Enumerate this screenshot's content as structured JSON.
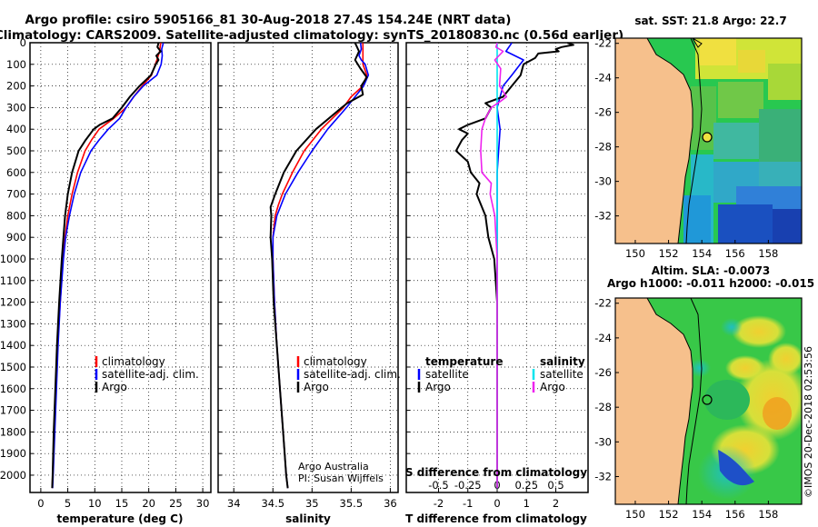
{
  "title_line1": "Argo profile: csiro 5905166_81 30-Aug-2018 27.4S 154.24E (NRT data)",
  "title_line2": "Climatology: CARS2009. Satellite-adjusted climatology: synTS_20180830.nc (0.56d earlier)",
  "credit_line1": "Argo Australia",
  "credit_line2": "PI: Susan Wijffels",
  "timestamp": "©IMOS 20-Dec-2018 02:53:56",
  "colors": {
    "argo": "#000000",
    "clim": "#ff0000",
    "satclim": "#0000ff",
    "s_sat": "#00e5ee",
    "s_argo": "#ee22ee"
  },
  "chart_data": [
    {
      "type": "line",
      "panel": "temperature",
      "xlabel": "temperature (deg C)",
      "xlim": [
        -2,
        31.5
      ],
      "xticks": [
        "0",
        "5",
        "10",
        "15",
        "20",
        "25",
        "30"
      ],
      "ylim": [
        2080,
        0
      ],
      "yticks": [
        "0",
        "100",
        "200",
        "300",
        "400",
        "500",
        "600",
        "700",
        "800",
        "900",
        "1000",
        "1100",
        "1200",
        "1300",
        "1400",
        "1500",
        "1600",
        "1700",
        "1800",
        "1900",
        "2000"
      ],
      "legend": {
        "items": [
          "climatology",
          "satellite-adj. clim.",
          "Argo"
        ]
      },
      "series": [
        {
          "name": "climatology",
          "depth": [
            1,
            40,
            80,
            150,
            200,
            250,
            300,
            350,
            400,
            450,
            500,
            600,
            700,
            800,
            900,
            1000,
            1200,
            1400,
            1600,
            1800,
            2000,
            2060
          ],
          "values": [
            22.2,
            22.0,
            21.5,
            20.5,
            18.8,
            17.2,
            15.8,
            13.5,
            10.8,
            9.4,
            8.2,
            6.8,
            5.8,
            5.0,
            4.5,
            4.1,
            3.6,
            3.1,
            2.8,
            2.5,
            2.2,
            2.1
          ]
        },
        {
          "name": "satellite-adj. clim.",
          "depth": [
            1,
            30,
            60,
            100,
            150,
            200,
            250,
            300,
            350,
            400,
            450,
            500,
            600,
            700,
            800,
            900,
            1000,
            1200,
            1400,
            1600,
            1800,
            2000,
            2060
          ],
          "values": [
            22.7,
            22.4,
            22.5,
            22.3,
            21.5,
            19.0,
            17.2,
            15.8,
            14.6,
            12.5,
            10.8,
            9.3,
            7.4,
            6.2,
            5.3,
            4.6,
            4.2,
            3.6,
            3.2,
            2.9,
            2.6,
            2.3,
            2.2
          ]
        },
        {
          "name": "Argo",
          "depth": [
            1,
            20,
            40,
            60,
            80,
            100,
            150,
            200,
            250,
            300,
            350,
            380,
            400,
            450,
            500,
            600,
            700,
            800,
            900,
            1000,
            1200,
            1400,
            1600,
            1800,
            2000,
            2060
          ],
          "values": [
            21.8,
            21.6,
            22.2,
            21.4,
            21.8,
            21.3,
            20.4,
            18.3,
            16.5,
            15.0,
            13.3,
            10.9,
            9.8,
            8.3,
            7.0,
            5.8,
            5.0,
            4.5,
            4.2,
            3.9,
            3.4,
            3.0,
            2.7,
            2.4,
            2.2,
            2.1
          ]
        }
      ]
    },
    {
      "type": "line",
      "panel": "salinity",
      "xlabel": "salinity",
      "xlim": [
        33.8,
        36.1
      ],
      "xticks": [
        "34",
        "34.5",
        "35",
        "35.5",
        "36"
      ],
      "ylim": [
        2080,
        0
      ],
      "legend": {
        "items": [
          "climatology",
          "satellite-adj. clim.",
          "Argo"
        ]
      },
      "series": [
        {
          "name": "climatology",
          "depth": [
            1,
            50,
            100,
            150,
            200,
            250,
            300,
            400,
            500,
            600,
            700,
            750,
            800,
            900,
            1000,
            1200,
            1400,
            1600,
            1800,
            2000,
            2060
          ],
          "values": [
            35.65,
            35.65,
            35.65,
            35.7,
            35.65,
            35.5,
            35.4,
            35.12,
            34.9,
            34.75,
            34.62,
            34.57,
            34.53,
            34.5,
            34.5,
            34.52,
            34.55,
            34.59,
            34.63,
            34.67,
            34.69
          ]
        },
        {
          "name": "satellite-adj. clim.",
          "depth": [
            1,
            30,
            60,
            80,
            100,
            150,
            200,
            250,
            300,
            400,
            500,
            600,
            700,
            800,
            900,
            1000,
            1200,
            1400,
            1600,
            1800,
            2000,
            2060
          ],
          "values": [
            35.62,
            35.63,
            35.6,
            35.63,
            35.68,
            35.72,
            35.66,
            35.55,
            35.44,
            35.2,
            35.0,
            34.82,
            34.66,
            34.55,
            34.5,
            34.5,
            34.52,
            34.55,
            34.59,
            34.63,
            34.67,
            34.69
          ]
        },
        {
          "name": "Argo",
          "depth": [
            1,
            40,
            80,
            120,
            160,
            200,
            240,
            280,
            300,
            400,
            500,
            600,
            700,
            760,
            800,
            900,
            1000,
            1200,
            1400,
            1600,
            1800,
            2000,
            2060
          ],
          "values": [
            35.55,
            35.6,
            35.55,
            35.62,
            35.7,
            35.63,
            35.65,
            35.45,
            35.38,
            35.05,
            34.8,
            34.64,
            34.53,
            34.47,
            34.48,
            34.47,
            34.49,
            34.51,
            34.55,
            34.59,
            34.63,
            34.67,
            34.69
          ]
        }
      ]
    },
    {
      "type": "line",
      "panel": "difference",
      "xlabel": "T difference from climatology",
      "xlabel_top": "S difference from climatology",
      "xlim": [
        -3.1,
        3.1
      ],
      "xticks": [
        "-2",
        "-1",
        "0",
        "1",
        "2"
      ],
      "xticks_top": [
        "-0.5",
        "-0.25",
        "0",
        "0.25",
        "0.5"
      ],
      "ylim": [
        2080,
        0
      ],
      "legend": {
        "left_head": "temperature",
        "right_head": "salinity",
        "left_items": [
          "satellite",
          "Argo"
        ],
        "right_items": [
          "satellite",
          "Argo"
        ]
      },
      "series": [
        {
          "name": "T satellite",
          "depth": [
            1,
            40,
            80,
            150,
            200,
            300,
            400,
            600,
            800,
            1000,
            2060
          ],
          "values": [
            0.5,
            0.3,
            0.9,
            0.5,
            0.2,
            0.0,
            0.1,
            0.0,
            0.0,
            0.0,
            0.0
          ]
        },
        {
          "name": "T Argo",
          "depth": [
            1,
            10,
            20,
            30,
            40,
            50,
            70,
            100,
            150,
            200,
            250,
            280,
            300,
            350,
            380,
            400,
            420,
            450,
            500,
            550,
            600,
            650,
            700,
            800,
            900,
            1000,
            1200,
            1400,
            2060
          ],
          "values": [
            2.4,
            2.6,
            2.2,
            2.0,
            2.1,
            1.4,
            1.3,
            0.9,
            0.8,
            0.5,
            0.2,
            -0.4,
            -0.2,
            -0.4,
            -1.0,
            -1.3,
            -1.0,
            -1.2,
            -1.4,
            -1.0,
            -0.9,
            -0.6,
            -0.7,
            -0.4,
            -0.3,
            -0.1,
            0.0,
            0.0,
            0.0
          ]
        },
        {
          "name": "S satellite",
          "depth": [
            1,
            100,
            200,
            400,
            600,
            800,
            1000,
            2060
          ],
          "values": [
            0.0,
            0.0,
            0.0,
            0.0,
            0.0,
            0.0,
            0.0,
            0.0
          ]
        },
        {
          "name": "S Argo",
          "depth": [
            1,
            20,
            40,
            80,
            120,
            200,
            250,
            270,
            300,
            350,
            400,
            500,
            600,
            650,
            700,
            800,
            1000,
            2060
          ],
          "values": [
            0.0,
            -0.01,
            0.05,
            -0.02,
            0.03,
            0.02,
            0.08,
            0.03,
            -0.05,
            -0.1,
            -0.13,
            -0.14,
            -0.13,
            -0.05,
            -0.06,
            -0.02,
            0.0,
            0.0
          ]
        }
      ]
    },
    {
      "type": "heatmap",
      "panel": "sst_map",
      "title": "sat. SST: 21.8 Argo: 22.7",
      "xticks": [
        "150",
        "152",
        "154",
        "156",
        "158"
      ],
      "yticks": [
        "-22",
        "-24",
        "-26",
        "-28",
        "-30",
        "-32"
      ],
      "argo_position": {
        "lon": 154.24,
        "lat": -27.4
      }
    },
    {
      "type": "heatmap",
      "panel": "sla_map",
      "title_line1": "Altim. SLA: -0.0073",
      "title_line2": "Argo h1000: -0.011 h2000: -0.015",
      "xticks": [
        "150",
        "152",
        "154",
        "156",
        "158"
      ],
      "yticks": [
        "-22",
        "-24",
        "-26",
        "-28",
        "-30",
        "-32"
      ],
      "argo_position": {
        "lon": 154.24,
        "lat": -27.4
      }
    }
  ]
}
